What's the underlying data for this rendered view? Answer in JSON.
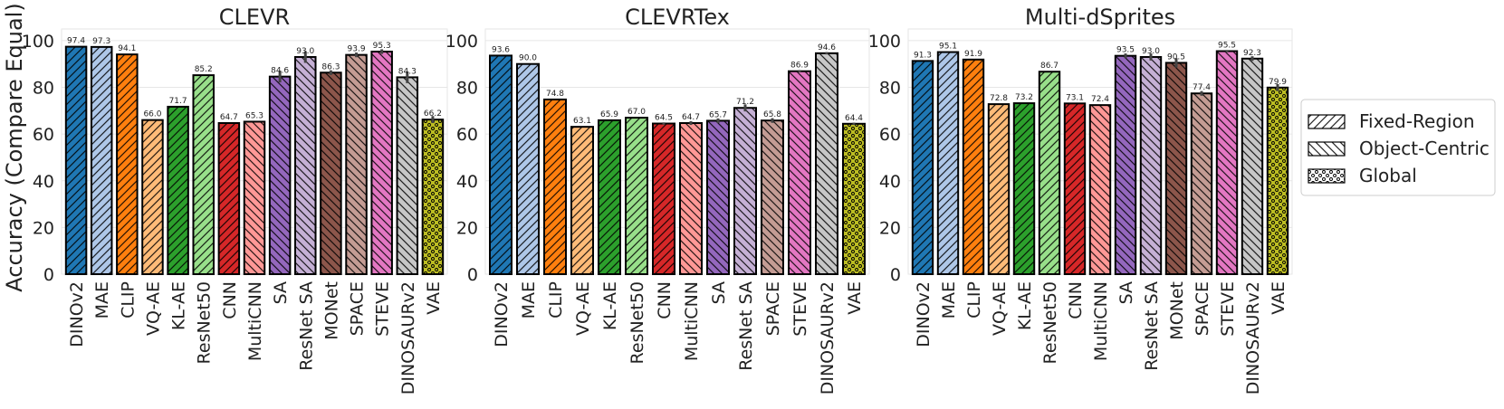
{
  "chart_data": {
    "type": "bar",
    "ylabel": "Accuracy (Compare Equal)",
    "ylim": [
      0,
      105
    ],
    "yticks": [
      0,
      20,
      40,
      60,
      80,
      100
    ],
    "grid": true,
    "legend": {
      "placement": "right",
      "entries": [
        {
          "label": "Fixed-Region",
          "pattern": "diag-right"
        },
        {
          "label": "Object-Centric",
          "pattern": "diag-left"
        },
        {
          "label": "Global",
          "pattern": "dots"
        }
      ]
    },
    "colors": {
      "DINOv2": "#1f77b4",
      "MAE": "#aec7e8",
      "CLIP": "#ff7f0e",
      "VQ-AE": "#ffbb78",
      "KL-AE": "#2ca02c",
      "ResNet50": "#98df8a",
      "CNN": "#d62728",
      "MultiCNN": "#ff9896",
      "SA": "#9467bd",
      "ResNet SA": "#c5b0d5",
      "MONet": "#8c564b",
      "SPACE": "#c49c94",
      "STEVE": "#e377c2",
      "DINOSAURv2": "#c7c7c7",
      "VAE": "#bcbd22"
    },
    "patterns": {
      "DINOv2": "diag-right",
      "MAE": "diag-right",
      "CLIP": "diag-right",
      "VQ-AE": "diag-right",
      "KL-AE": "diag-right",
      "ResNet50": "diag-right",
      "CNN": "diag-right",
      "MultiCNN": "diag-left",
      "SA": "diag-left",
      "ResNet SA": "diag-left",
      "MONet": "diag-left",
      "SPACE": "diag-left",
      "STEVE": "diag-left",
      "DINOSAURv2": "diag-left",
      "VAE": "dots"
    },
    "panels": [
      {
        "title": "CLEVR",
        "categories": [
          "DINOv2",
          "MAE",
          "CLIP",
          "VQ-AE",
          "KL-AE",
          "ResNet50",
          "CNN",
          "MultiCNN",
          "SA",
          "ResNet SA",
          "MONet",
          "SPACE",
          "STEVE",
          "DINOSAURv2",
          "VAE"
        ],
        "values": [
          97.4,
          97.3,
          94.1,
          66.0,
          71.7,
          85.2,
          64.7,
          65.3,
          84.6,
          93.0,
          86.3,
          93.9,
          95.3,
          84.3,
          66.2
        ],
        "labels": [
          "97.4",
          "97.3",
          "94.1",
          "66.0",
          "71.7",
          "85.2",
          "64.7",
          "65.3",
          "84.6",
          "93.0",
          "86.3",
          "93.9",
          "95.3",
          "84.3",
          "66.2"
        ],
        "errors": [
          0,
          0,
          0,
          0,
          0,
          0,
          0,
          0,
          2.5,
          2.5,
          1.0,
          1.0,
          1.0,
          2.5,
          1.5
        ]
      },
      {
        "title": "CLEVRTex",
        "categories": [
          "DINOv2",
          "MAE",
          "CLIP",
          "VQ-AE",
          "KL-AE",
          "ResNet50",
          "CNN",
          "MultiCNN",
          "SA",
          "ResNet SA",
          "SPACE",
          "STEVE",
          "DINOSAURv2",
          "VAE"
        ],
        "values": [
          93.6,
          90.0,
          74.8,
          63.1,
          65.9,
          67.0,
          64.5,
          64.7,
          65.7,
          71.2,
          65.8,
          86.9,
          94.6,
          64.4
        ],
        "labels": [
          "93.6",
          "90.0",
          "74.8",
          "63.1",
          "65.9",
          "67.0",
          "64.5",
          "64.7",
          "65.7",
          "71.2",
          "65.8",
          "86.9",
          "94.6",
          "64.4"
        ],
        "errors": [
          0,
          0,
          0,
          0,
          0,
          0,
          0.5,
          0.8,
          1.0,
          1.5,
          1.0,
          0.5,
          0.5,
          0.5
        ]
      },
      {
        "title": "Multi-dSprites",
        "categories": [
          "DINOv2",
          "MAE",
          "CLIP",
          "VQ-AE",
          "KL-AE",
          "ResNet50",
          "CNN",
          "MultiCNN",
          "SA",
          "ResNet SA",
          "MONet",
          "SPACE",
          "STEVE",
          "DINOSAURv2",
          "VAE"
        ],
        "values": [
          91.3,
          95.1,
          91.9,
          72.8,
          73.2,
          86.7,
          73.1,
          72.4,
          93.5,
          93.0,
          90.5,
          77.4,
          95.5,
          92.3,
          79.9
        ],
        "labels": [
          "91.3",
          "95.1",
          "91.9",
          "72.8",
          "73.2",
          "86.7",
          "73.1",
          "72.4",
          "93.5",
          "93.0",
          "90.5",
          "77.4",
          "95.5",
          "92.3",
          "79.9"
        ],
        "errors": [
          0,
          0,
          0,
          0,
          0,
          0,
          0,
          0,
          1.0,
          1.5,
          2.0,
          1.0,
          0.5,
          1.0,
          1.5
        ]
      }
    ]
  }
}
